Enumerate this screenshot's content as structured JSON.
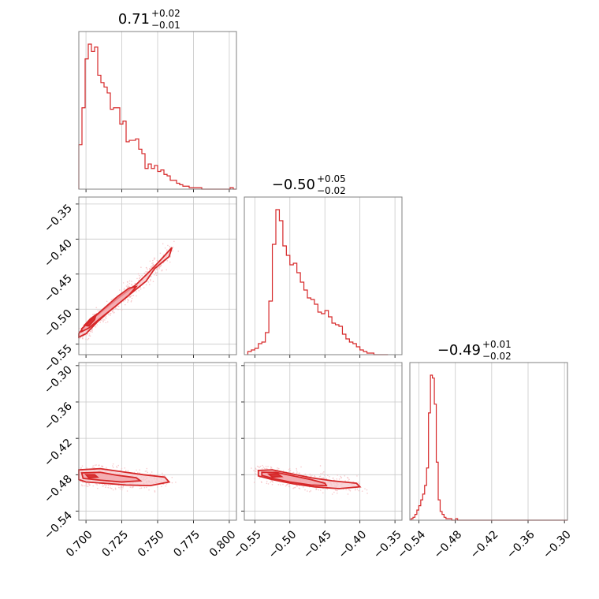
{
  "figure": {
    "type": "corner-plot",
    "color": "#d62728",
    "fill_inner": "#f2a0a6",
    "fill_outer": "#f7c9cd",
    "scatter_color": "#f4b6bb"
  },
  "chart_data": {
    "type": "corner",
    "parameters": [
      {
        "title_value": "0.71",
        "title_upper": "+0.02",
        "title_lower": "−0.01",
        "range": [
          0.695,
          0.805
        ],
        "ticks": [
          0.7,
          0.725,
          0.75,
          0.775,
          0.8
        ],
        "tick_labels": [
          "0.700",
          "0.725",
          "0.750",
          "0.775",
          "0.800"
        ],
        "histogram": {
          "edges_start": 0.695,
          "bin_width": 0.0022,
          "counts": [
            30,
            55,
            88,
            98,
            93,
            96,
            77,
            72,
            69,
            65,
            54,
            55,
            55,
            44,
            46,
            32,
            33,
            33,
            34,
            27,
            24,
            14,
            17,
            14,
            16,
            12,
            13,
            10,
            9,
            6,
            6,
            4,
            3,
            2,
            2,
            1,
            1,
            1,
            1,
            0,
            0,
            0,
            0,
            0,
            0,
            0,
            0,
            0,
            1,
            0
          ]
        }
      },
      {
        "title_value": "−0.50",
        "title_upper": "+0.05",
        "title_lower": "−0.02",
        "range": [
          -0.565,
          -0.34
        ],
        "ticks": [
          -0.55,
          -0.5,
          -0.45,
          -0.4,
          -0.35
        ],
        "tick_labels": [
          "−0.55",
          "−0.50",
          "−0.45",
          "−0.40",
          "−0.35"
        ],
        "histogram": {
          "edges_start": -0.56,
          "bin_width": 0.005,
          "counts": [
            2,
            3,
            4,
            7,
            8,
            14,
            34,
            70,
            92,
            85,
            69,
            63,
            57,
            58,
            52,
            46,
            41,
            36,
            35,
            32,
            27,
            26,
            28,
            24,
            20,
            19,
            18,
            13,
            10,
            8,
            7,
            5,
            3,
            2,
            1,
            1,
            0,
            0,
            0,
            0
          ]
        }
      },
      {
        "title_value": "−0.49",
        "title_upper": "+0.01",
        "title_lower": "−0.02",
        "range": [
          -0.555,
          -0.295
        ],
        "ticks": [
          -0.54,
          -0.48,
          -0.42,
          -0.36,
          -0.3
        ],
        "tick_labels": [
          "−0.54",
          "−0.48",
          "−0.42",
          "−0.36",
          "−0.30"
        ],
        "histogram": {
          "edges_start": -0.553,
          "bin_width": 0.0032,
          "counts": [
            1,
            2,
            4,
            7,
            10,
            14,
            18,
            24,
            36,
            74,
            100,
            98,
            80,
            40,
            14,
            6,
            4,
            2,
            1,
            1,
            1,
            0,
            0,
            1,
            0,
            0,
            0,
            0,
            0,
            0,
            0,
            0,
            0,
            0,
            0,
            0,
            0,
            0,
            0,
            0,
            0,
            0,
            0,
            0,
            0,
            0,
            0,
            0,
            0,
            0,
            0,
            0,
            0,
            0,
            0,
            0,
            0,
            0,
            0,
            0,
            0,
            0,
            0,
            0,
            0,
            0,
            0,
            0,
            0,
            0,
            0,
            0,
            0,
            0,
            0,
            0,
            0,
            0,
            0,
            0,
            0
          ]
        }
      }
    ],
    "pairs": [
      {
        "x_param": 0,
        "y_param": 1,
        "center": [
          0.708,
          -0.515
        ],
        "slope": 1.55,
        "contours": [
          {
            "level": "outer",
            "points": [
              [
                0.695,
                -0.535
              ],
              [
                0.7,
                -0.522
              ],
              [
                0.71,
                -0.505
              ],
              [
                0.722,
                -0.485
              ],
              [
                0.735,
                -0.465
              ],
              [
                0.745,
                -0.445
              ],
              [
                0.752,
                -0.43
              ],
              [
                0.76,
                -0.412
              ],
              [
                0.758,
                -0.425
              ],
              [
                0.748,
                -0.442
              ],
              [
                0.742,
                -0.46
              ],
              [
                0.73,
                -0.48
              ],
              [
                0.718,
                -0.5
              ],
              [
                0.708,
                -0.518
              ],
              [
                0.7,
                -0.535
              ],
              [
                0.695,
                -0.54
              ]
            ]
          },
          {
            "level": "inner",
            "points": [
              [
                0.697,
                -0.528
              ],
              [
                0.703,
                -0.516
              ],
              [
                0.712,
                -0.5
              ],
              [
                0.722,
                -0.482
              ],
              [
                0.73,
                -0.47
              ],
              [
                0.735,
                -0.468
              ],
              [
                0.73,
                -0.48
              ],
              [
                0.72,
                -0.497
              ],
              [
                0.71,
                -0.513
              ],
              [
                0.702,
                -0.527
              ],
              [
                0.697,
                -0.532
              ]
            ]
          },
          {
            "level": "core",
            "points": [
              [
                0.699,
                -0.523
              ],
              [
                0.703,
                -0.514
              ],
              [
                0.707,
                -0.508
              ],
              [
                0.706,
                -0.515
              ],
              [
                0.702,
                -0.524
              ]
            ]
          }
        ]
      },
      {
        "x_param": 0,
        "y_param": 2,
        "center": [
          0.706,
          -0.482
        ],
        "contours": [
          {
            "level": "outer",
            "points": [
              [
                0.695,
                -0.472
              ],
              [
                0.71,
                -0.47
              ],
              [
                0.725,
                -0.475
              ],
              [
                0.74,
                -0.48
              ],
              [
                0.755,
                -0.484
              ],
              [
                0.758,
                -0.492
              ],
              [
                0.745,
                -0.498
              ],
              [
                0.728,
                -0.497
              ],
              [
                0.712,
                -0.494
              ],
              [
                0.7,
                -0.492
              ],
              [
                0.695,
                -0.488
              ]
            ]
          },
          {
            "level": "inner",
            "points": [
              [
                0.697,
                -0.477
              ],
              [
                0.71,
                -0.476
              ],
              [
                0.722,
                -0.481
              ],
              [
                0.735,
                -0.485
              ],
              [
                0.738,
                -0.49
              ],
              [
                0.725,
                -0.492
              ],
              [
                0.71,
                -0.489
              ],
              [
                0.698,
                -0.486
              ]
            ]
          },
          {
            "level": "core",
            "points": [
              [
                0.7,
                -0.48
              ],
              [
                0.706,
                -0.48
              ],
              [
                0.708,
                -0.484
              ],
              [
                0.702,
                -0.485
              ]
            ]
          }
        ]
      },
      {
        "x_param": 1,
        "y_param": 2,
        "center": [
          -0.515,
          -0.481
        ],
        "contours": [
          {
            "level": "outer",
            "points": [
              [
                -0.545,
                -0.473
              ],
              [
                -0.525,
                -0.472
              ],
              [
                -0.5,
                -0.478
              ],
              [
                -0.47,
                -0.485
              ],
              [
                -0.44,
                -0.49
              ],
              [
                -0.405,
                -0.494
              ],
              [
                -0.4,
                -0.5
              ],
              [
                -0.43,
                -0.503
              ],
              [
                -0.465,
                -0.5
              ],
              [
                -0.495,
                -0.495
              ],
              [
                -0.525,
                -0.488
              ],
              [
                -0.545,
                -0.482
              ]
            ]
          },
          {
            "level": "inner",
            "points": [
              [
                -0.54,
                -0.476
              ],
              [
                -0.52,
                -0.476
              ],
              [
                -0.495,
                -0.482
              ],
              [
                -0.47,
                -0.488
              ],
              [
                -0.45,
                -0.494
              ],
              [
                -0.448,
                -0.498
              ],
              [
                -0.47,
                -0.497
              ],
              [
                -0.5,
                -0.492
              ],
              [
                -0.525,
                -0.486
              ],
              [
                -0.54,
                -0.481
              ]
            ]
          },
          {
            "level": "core",
            "points": [
              [
                -0.53,
                -0.479
              ],
              [
                -0.518,
                -0.478
              ],
              [
                -0.512,
                -0.483
              ],
              [
                -0.525,
                -0.484
              ]
            ]
          }
        ]
      }
    ]
  }
}
